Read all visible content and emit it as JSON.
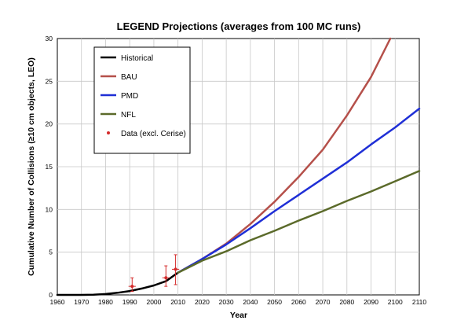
{
  "chart_data": {
    "type": "line",
    "title": "LEGEND Projections (averages from 100 MC runs)",
    "xlabel": "Year",
    "ylabel": "Cumulative Number of Collisions (≥10 cm objects, LEO)",
    "xlim": [
      1960,
      2110
    ],
    "ylim": [
      0,
      30
    ],
    "x_ticks": [
      1960,
      1970,
      1980,
      1990,
      2000,
      2010,
      2020,
      2030,
      2040,
      2050,
      2060,
      2070,
      2080,
      2090,
      2100,
      2110
    ],
    "y_ticks": [
      0,
      5,
      10,
      15,
      20,
      25,
      30
    ],
    "grid": true,
    "legend_position": "top-left",
    "series": [
      {
        "name": "Historical",
        "color": "#000000",
        "x": [
          1960,
          1965,
          1970,
          1975,
          1980,
          1985,
          1990,
          1995,
          2000,
          2005,
          2010
        ],
        "y": [
          0,
          0,
          0,
          0.02,
          0.1,
          0.25,
          0.45,
          0.75,
          1.1,
          1.6,
          2.6
        ]
      },
      {
        "name": "BAU",
        "color": "#b5504a",
        "x": [
          2010,
          2020,
          2030,
          2040,
          2050,
          2060,
          2070,
          2080,
          2090,
          2098
        ],
        "y": [
          2.6,
          4.2,
          6.0,
          8.3,
          10.9,
          13.8,
          17.0,
          21.0,
          25.5,
          30.0
        ]
      },
      {
        "name": "PMD",
        "color": "#1f2fd6",
        "x": [
          2010,
          2020,
          2030,
          2040,
          2050,
          2060,
          2070,
          2080,
          2090,
          2100,
          2110
        ],
        "y": [
          2.6,
          4.2,
          5.9,
          7.8,
          9.8,
          11.7,
          13.6,
          15.5,
          17.6,
          19.6,
          21.8
        ]
      },
      {
        "name": "NFL",
        "color": "#5b6a2a",
        "x": [
          2010,
          2020,
          2030,
          2040,
          2050,
          2060,
          2070,
          2080,
          2090,
          2100,
          2110
        ],
        "y": [
          2.6,
          4.0,
          5.1,
          6.4,
          7.5,
          8.7,
          9.8,
          11.0,
          12.1,
          13.3,
          14.5
        ]
      }
    ],
    "data_points": {
      "name": "Data (excl. Cerise)",
      "color": "#d42a2a",
      "points": [
        {
          "x": 1991,
          "y": 1.0,
          "y_err_low": 0.4,
          "y_err_high": 2.0,
          "x_err_low": 1989.5,
          "x_err_high": 1992.5
        },
        {
          "x": 2005,
          "y": 2.0,
          "y_err_low": 1.0,
          "y_err_high": 3.4,
          "x_err_low": 2003.5,
          "x_err_high": 2006.5
        },
        {
          "x": 2009,
          "y": 3.0,
          "y_err_low": 1.2,
          "y_err_high": 4.7,
          "x_err_low": 2007.5,
          "x_err_high": 2010.5
        }
      ]
    }
  }
}
